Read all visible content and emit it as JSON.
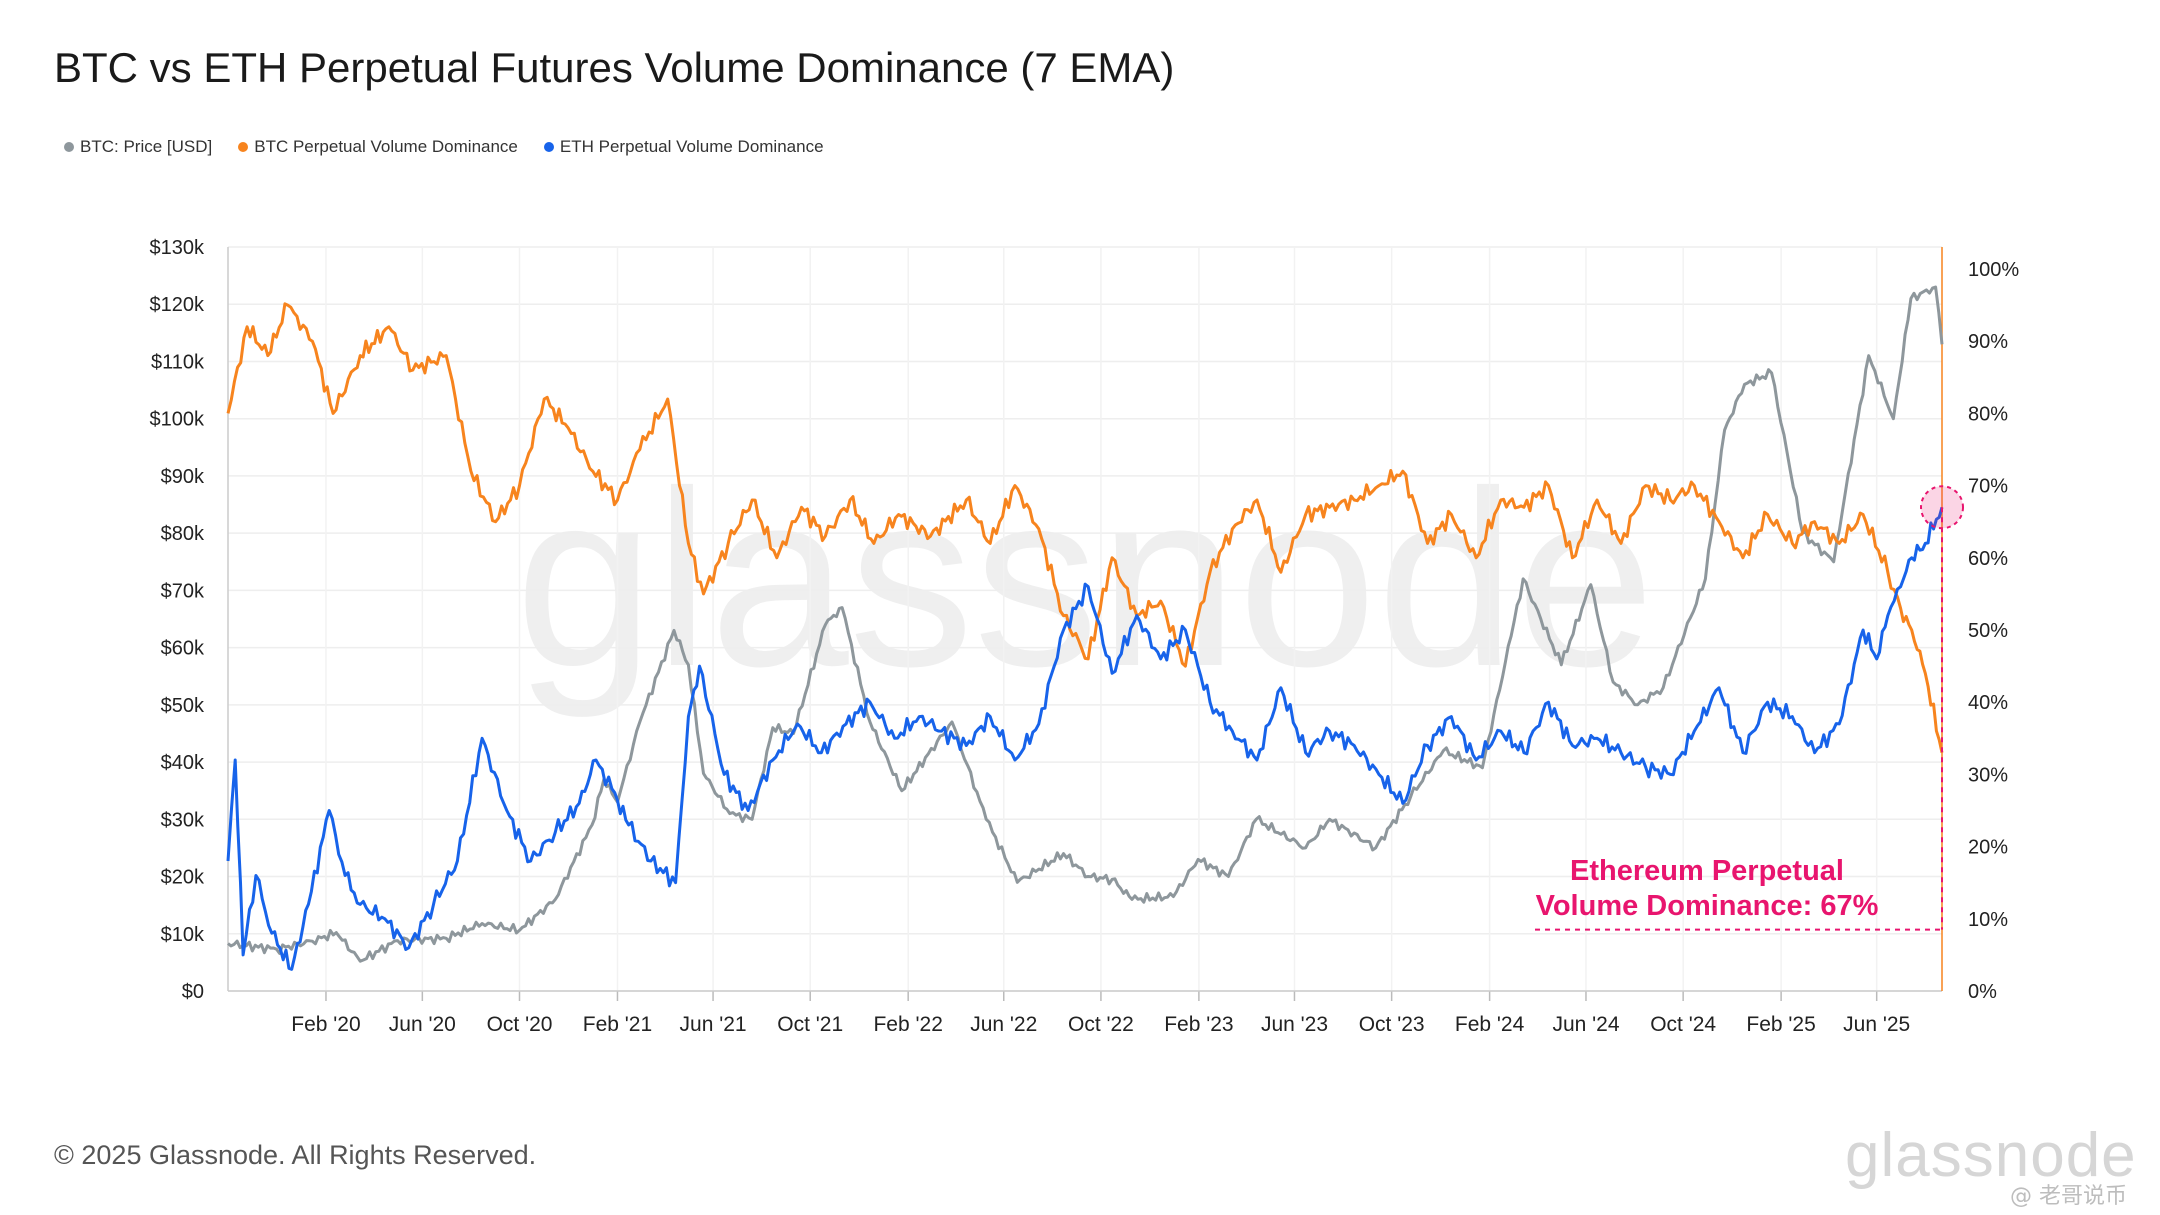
{
  "chart_data": {
    "type": "line",
    "title": "BTC vs ETH Perpetual Futures Volume Dominance (7 EMA)",
    "legend": [
      {
        "name": "BTC: Price [USD]",
        "color": "#8e979c"
      },
      {
        "name": "BTC Perpetual Volume Dominance",
        "color": "#f7841e"
      },
      {
        "name": "ETH Perpetual Volume Dominance",
        "color": "#1763ea"
      }
    ],
    "legend_position": "top-left",
    "x_axis": {
      "type": "date",
      "range": [
        "2019-10-01",
        "2025-08-22"
      ],
      "ticks": [
        {
          "date": "2020-02-01",
          "label": "Feb '20"
        },
        {
          "date": "2020-06-01",
          "label": "Jun '20"
        },
        {
          "date": "2020-10-01",
          "label": "Oct '20"
        },
        {
          "date": "2021-02-01",
          "label": "Feb '21"
        },
        {
          "date": "2021-06-01",
          "label": "Jun '21"
        },
        {
          "date": "2021-10-01",
          "label": "Oct '21"
        },
        {
          "date": "2022-02-01",
          "label": "Feb '22"
        },
        {
          "date": "2022-06-01",
          "label": "Jun '22"
        },
        {
          "date": "2022-10-01",
          "label": "Oct '22"
        },
        {
          "date": "2023-02-01",
          "label": "Feb '23"
        },
        {
          "date": "2023-06-01",
          "label": "Jun '23"
        },
        {
          "date": "2023-10-01",
          "label": "Oct '23"
        },
        {
          "date": "2024-02-01",
          "label": "Feb '24"
        },
        {
          "date": "2024-06-01",
          "label": "Jun '24"
        },
        {
          "date": "2024-10-01",
          "label": "Oct '24"
        },
        {
          "date": "2025-02-01",
          "label": "Feb '25"
        },
        {
          "date": "2025-06-01",
          "label": "Jun '25"
        }
      ]
    },
    "y_left": {
      "range": [
        0,
        130000
      ],
      "ticks": [
        {
          "value": 0,
          "label": "$0"
        },
        {
          "value": 10000,
          "label": "$10k"
        },
        {
          "value": 20000,
          "label": "$20k"
        },
        {
          "value": 30000,
          "label": "$30k"
        },
        {
          "value": 40000,
          "label": "$40k"
        },
        {
          "value": 50000,
          "label": "$50k"
        },
        {
          "value": 60000,
          "label": "$60k"
        },
        {
          "value": 70000,
          "label": "$70k"
        },
        {
          "value": 80000,
          "label": "$80k"
        },
        {
          "value": 90000,
          "label": "$90k"
        },
        {
          "value": 100000,
          "label": "$100k"
        },
        {
          "value": 110000,
          "label": "$110k"
        },
        {
          "value": 120000,
          "label": "$120k"
        },
        {
          "value": 130000,
          "label": "$130k"
        }
      ]
    },
    "y_right": {
      "range": [
        0,
        100
      ],
      "unit": "%",
      "ticks": [
        {
          "value": 0,
          "label": "0%"
        },
        {
          "value": 10,
          "label": "10%"
        },
        {
          "value": 20,
          "label": "20%"
        },
        {
          "value": 30,
          "label": "30%"
        },
        {
          "value": 40,
          "label": "40%"
        },
        {
          "value": 50,
          "label": "50%"
        },
        {
          "value": 60,
          "label": "60%"
        },
        {
          "value": 70,
          "label": "70%"
        },
        {
          "value": 80,
          "label": "80%"
        },
        {
          "value": 90,
          "label": "90%"
        },
        {
          "value": 100,
          "label": "100%"
        }
      ]
    },
    "grid": true,
    "series": [
      {
        "name": "BTC: Price [USD]",
        "axis": "left",
        "color": "#8e979c",
        "points": [
          [
            "2019-10-01",
            8300
          ],
          [
            "2019-12-01",
            7300
          ],
          [
            "2020-01-15",
            8700
          ],
          [
            "2020-02-14",
            10200
          ],
          [
            "2020-03-15",
            5200
          ],
          [
            "2020-05-01",
            8800
          ],
          [
            "2020-07-01",
            9200
          ],
          [
            "2020-08-15",
            11800
          ],
          [
            "2020-10-01",
            10600
          ],
          [
            "2020-11-15",
            16000
          ],
          [
            "2020-12-31",
            29000
          ],
          [
            "2021-01-15",
            37000
          ],
          [
            "2021-02-01",
            33000
          ],
          [
            "2021-03-01",
            47000
          ],
          [
            "2021-04-13",
            63000
          ],
          [
            "2021-05-01",
            57000
          ],
          [
            "2021-05-20",
            38000
          ],
          [
            "2021-06-22",
            31000
          ],
          [
            "2021-07-20",
            30000
          ],
          [
            "2021-08-15",
            46000
          ],
          [
            "2021-09-10",
            45000
          ],
          [
            "2021-10-20",
            64000
          ],
          [
            "2021-11-10",
            67000
          ],
          [
            "2021-12-15",
            47000
          ],
          [
            "2022-01-24",
            35000
          ],
          [
            "2022-03-28",
            47000
          ],
          [
            "2022-05-10",
            30000
          ],
          [
            "2022-06-18",
            19000
          ],
          [
            "2022-08-15",
            24000
          ],
          [
            "2022-09-15",
            20000
          ],
          [
            "2022-10-15",
            19500
          ],
          [
            "2022-11-09",
            16000
          ],
          [
            "2022-12-31",
            16500
          ],
          [
            "2023-01-31",
            23000
          ],
          [
            "2023-03-10",
            20000
          ],
          [
            "2023-04-14",
            30000
          ],
          [
            "2023-06-15",
            25000
          ],
          [
            "2023-07-15",
            30000
          ],
          [
            "2023-09-11",
            25000
          ],
          [
            "2023-10-25",
            34000
          ],
          [
            "2023-12-05",
            42000
          ],
          [
            "2024-01-23",
            39000
          ],
          [
            "2024-02-28",
            62000
          ],
          [
            "2024-03-14",
            72000
          ],
          [
            "2024-05-01",
            57000
          ],
          [
            "2024-06-07",
            71000
          ],
          [
            "2024-07-05",
            54000
          ],
          [
            "2024-08-05",
            50000
          ],
          [
            "2024-09-06",
            53000
          ],
          [
            "2024-10-29",
            72000
          ],
          [
            "2024-11-22",
            98000
          ],
          [
            "2024-12-17",
            106000
          ],
          [
            "2025-01-20",
            108000
          ],
          [
            "2025-02-28",
            80000
          ],
          [
            "2025-04-08",
            75000
          ],
          [
            "2025-05-22",
            111000
          ],
          [
            "2025-06-22",
            100000
          ],
          [
            "2025-07-14",
            121000
          ],
          [
            "2025-08-14",
            123000
          ],
          [
            "2025-08-22",
            113000
          ]
        ]
      },
      {
        "name": "BTC Perpetual Volume Dominance",
        "axis": "right",
        "color": "#f7841e",
        "points": [
          [
            "2019-10-01",
            80
          ],
          [
            "2019-10-25",
            92
          ],
          [
            "2019-11-20",
            88
          ],
          [
            "2019-12-15",
            95
          ],
          [
            "2020-01-15",
            90
          ],
          [
            "2020-02-10",
            80
          ],
          [
            "2020-03-15",
            88
          ],
          [
            "2020-04-20",
            92
          ],
          [
            "2020-05-20",
            86
          ],
          [
            "2020-07-01",
            88
          ],
          [
            "2020-08-01",
            72
          ],
          [
            "2020-09-01",
            65
          ],
          [
            "2020-10-01",
            70
          ],
          [
            "2020-11-01",
            82
          ],
          [
            "2020-12-01",
            78
          ],
          [
            "2021-01-01",
            72
          ],
          [
            "2021-02-01",
            68
          ],
          [
            "2021-03-01",
            75
          ],
          [
            "2021-04-05",
            82
          ],
          [
            "2021-05-01",
            62
          ],
          [
            "2021-05-20",
            55
          ],
          [
            "2021-06-20",
            62
          ],
          [
            "2021-07-20",
            68
          ],
          [
            "2021-08-20",
            60
          ],
          [
            "2021-09-20",
            67
          ],
          [
            "2021-10-20",
            63
          ],
          [
            "2021-11-20",
            68
          ],
          [
            "2021-12-20",
            62
          ],
          [
            "2022-01-20",
            66
          ],
          [
            "2022-03-01",
            63
          ],
          [
            "2022-04-15",
            68
          ],
          [
            "2022-05-15",
            62
          ],
          [
            "2022-06-15",
            70
          ],
          [
            "2022-07-15",
            64
          ],
          [
            "2022-08-15",
            52
          ],
          [
            "2022-09-15",
            46
          ],
          [
            "2022-10-15",
            60
          ],
          [
            "2022-11-15",
            52
          ],
          [
            "2022-12-15",
            54
          ],
          [
            "2023-01-15",
            45
          ],
          [
            "2023-02-15",
            58
          ],
          [
            "2023-03-15",
            64
          ],
          [
            "2023-04-15",
            68
          ],
          [
            "2023-05-15",
            58
          ],
          [
            "2023-06-15",
            66
          ],
          [
            "2023-07-15",
            67
          ],
          [
            "2023-08-15",
            68
          ],
          [
            "2023-09-15",
            70
          ],
          [
            "2023-10-15",
            72
          ],
          [
            "2023-11-15",
            62
          ],
          [
            "2023-12-15",
            66
          ],
          [
            "2024-01-15",
            60
          ],
          [
            "2024-02-15",
            68
          ],
          [
            "2024-03-15",
            67
          ],
          [
            "2024-04-15",
            70
          ],
          [
            "2024-05-15",
            60
          ],
          [
            "2024-06-15",
            68
          ],
          [
            "2024-07-15",
            62
          ],
          [
            "2024-08-15",
            70
          ],
          [
            "2024-09-15",
            68
          ],
          [
            "2024-10-15",
            70
          ],
          [
            "2024-11-15",
            65
          ],
          [
            "2024-12-15",
            60
          ],
          [
            "2025-01-15",
            66
          ],
          [
            "2025-02-15",
            62
          ],
          [
            "2025-03-15",
            65
          ],
          [
            "2025-04-15",
            62
          ],
          [
            "2025-05-15",
            66
          ],
          [
            "2025-06-15",
            58
          ],
          [
            "2025-07-01",
            53
          ],
          [
            "2025-07-15",
            50
          ],
          [
            "2025-08-01",
            44
          ],
          [
            "2025-08-22",
            33
          ]
        ]
      },
      {
        "name": "ETH Perpetual Volume Dominance",
        "axis": "right",
        "color": "#1763ea",
        "points": [
          [
            "2019-10-01",
            18
          ],
          [
            "2019-10-10",
            32
          ],
          [
            "2019-10-20",
            5
          ],
          [
            "2019-11-05",
            16
          ],
          [
            "2019-11-25",
            8
          ],
          [
            "2019-12-20",
            3
          ],
          [
            "2020-01-10",
            12
          ],
          [
            "2020-02-05",
            25
          ],
          [
            "2020-02-25",
            16
          ],
          [
            "2020-03-15",
            12
          ],
          [
            "2020-04-15",
            10
          ],
          [
            "2020-05-15",
            6
          ],
          [
            "2020-06-15",
            12
          ],
          [
            "2020-07-15",
            18
          ],
          [
            "2020-08-15",
            35
          ],
          [
            "2020-09-15",
            25
          ],
          [
            "2020-10-15",
            18
          ],
          [
            "2020-11-15",
            22
          ],
          [
            "2020-12-15",
            26
          ],
          [
            "2021-01-05",
            32
          ],
          [
            "2021-01-25",
            28
          ],
          [
            "2021-02-15",
            23
          ],
          [
            "2021-03-15",
            18
          ],
          [
            "2021-04-15",
            15
          ],
          [
            "2021-05-01",
            38
          ],
          [
            "2021-05-15",
            45
          ],
          [
            "2021-06-15",
            30
          ],
          [
            "2021-07-15",
            25
          ],
          [
            "2021-08-15",
            32
          ],
          [
            "2021-09-15",
            37
          ],
          [
            "2021-10-15",
            33
          ],
          [
            "2021-11-15",
            37
          ],
          [
            "2021-12-15",
            40
          ],
          [
            "2022-01-15",
            35
          ],
          [
            "2022-02-15",
            38
          ],
          [
            "2022-03-15",
            36
          ],
          [
            "2022-04-15",
            34
          ],
          [
            "2022-05-15",
            38
          ],
          [
            "2022-06-15",
            32
          ],
          [
            "2022-07-15",
            37
          ],
          [
            "2022-08-15",
            50
          ],
          [
            "2022-09-15",
            56
          ],
          [
            "2022-10-15",
            44
          ],
          [
            "2022-11-15",
            52
          ],
          [
            "2022-12-15",
            46
          ],
          [
            "2023-01-15",
            50
          ],
          [
            "2023-02-15",
            40
          ],
          [
            "2023-03-15",
            36
          ],
          [
            "2023-04-15",
            32
          ],
          [
            "2023-05-15",
            42
          ],
          [
            "2023-06-15",
            33
          ],
          [
            "2023-07-15",
            36
          ],
          [
            "2023-08-15",
            34
          ],
          [
            "2023-09-15",
            30
          ],
          [
            "2023-10-15",
            26
          ],
          [
            "2023-11-15",
            34
          ],
          [
            "2023-12-15",
            38
          ],
          [
            "2024-01-15",
            32
          ],
          [
            "2024-02-15",
            36
          ],
          [
            "2024-03-15",
            33
          ],
          [
            "2024-04-15",
            40
          ],
          [
            "2024-05-15",
            34
          ],
          [
            "2024-06-15",
            35
          ],
          [
            "2024-07-15",
            33
          ],
          [
            "2024-08-15",
            31
          ],
          [
            "2024-09-15",
            30
          ],
          [
            "2024-10-15",
            36
          ],
          [
            "2024-11-15",
            42
          ],
          [
            "2024-12-15",
            33
          ],
          [
            "2025-01-15",
            40
          ],
          [
            "2025-02-15",
            38
          ],
          [
            "2025-03-15",
            33
          ],
          [
            "2025-04-15",
            37
          ],
          [
            "2025-05-15",
            50
          ],
          [
            "2025-06-01",
            46
          ],
          [
            "2025-06-15",
            52
          ],
          [
            "2025-07-01",
            56
          ],
          [
            "2025-07-15",
            60
          ],
          [
            "2025-08-01",
            62
          ],
          [
            "2025-08-22",
            67
          ]
        ]
      }
    ],
    "annotation": {
      "text_line1": "Ethereum Perpetual",
      "text_line2": "Volume Dominance: 67%",
      "color": "#e8156e",
      "date": "2025-08-22",
      "value": 67
    }
  },
  "footer": {
    "copyright": "© 2025 Glassnode. All Rights Reserved.",
    "logo": "glassnode",
    "chart_watermark": "glassnode",
    "corner_watermark": "@ 老哥说币"
  }
}
